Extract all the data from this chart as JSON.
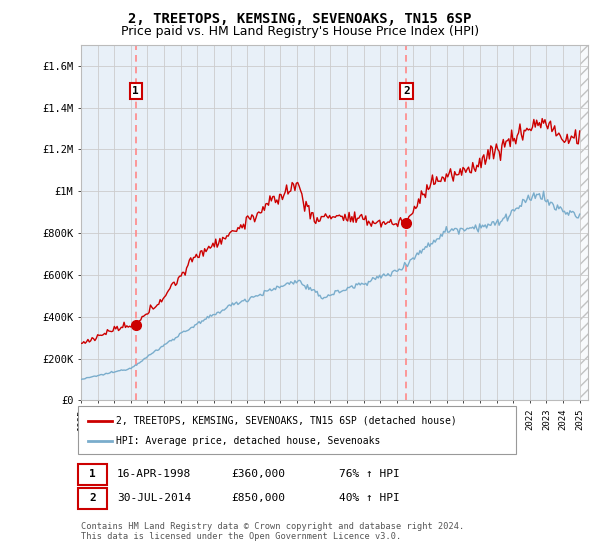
{
  "title": "2, TREETOPS, KEMSING, SEVENOAKS, TN15 6SP",
  "subtitle": "Price paid vs. HM Land Registry's House Price Index (HPI)",
  "title_fontsize": 10,
  "subtitle_fontsize": 9,
  "sale1_date_num": 1998.29,
  "sale1_price": 360000,
  "sale1_label": "1",
  "sale2_date_num": 2014.58,
  "sale2_price": 850000,
  "sale2_label": "2",
  "red_line_color": "#cc0000",
  "blue_line_color": "#7aadcc",
  "dashed_line_color": "#ff8888",
  "chart_bg_color": "#e8f0f8",
  "background_color": "#ffffff",
  "grid_color": "#cccccc",
  "legend_entry1": "2, TREETOPS, KEMSING, SEVENOAKS, TN15 6SP (detached house)",
  "legend_entry2": "HPI: Average price, detached house, Sevenoaks",
  "table_row1": [
    "1",
    "16-APR-1998",
    "£360,000",
    "76% ↑ HPI"
  ],
  "table_row2": [
    "2",
    "30-JUL-2014",
    "£850,000",
    "40% ↑ HPI"
  ],
  "footer": "Contains HM Land Registry data © Crown copyright and database right 2024.\nThis data is licensed under the Open Government Licence v3.0.",
  "ylim": [
    0,
    1700000
  ],
  "yticks": [
    0,
    200000,
    400000,
    600000,
    800000,
    1000000,
    1200000,
    1400000,
    1600000
  ],
  "ytick_labels": [
    "£0",
    "£200K",
    "£400K",
    "£600K",
    "£800K",
    "£1M",
    "£1.2M",
    "£1.4M",
    "£1.6M"
  ],
  "xlim_start": 1995.3,
  "xlim_end": 2025.5,
  "hatch_start": 2025.0
}
